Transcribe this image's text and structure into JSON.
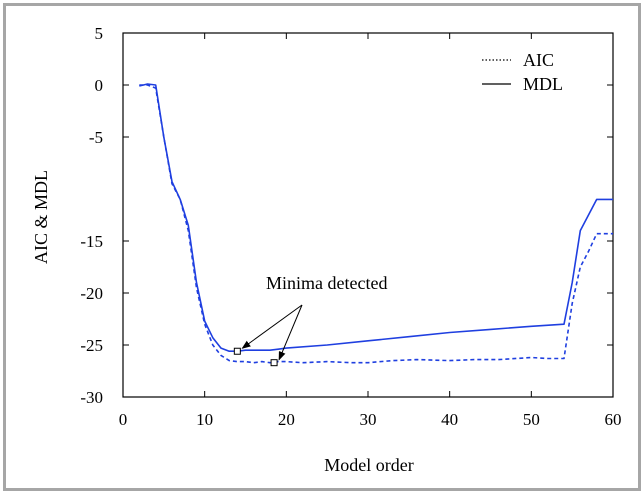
{
  "chart_data": {
    "type": "line",
    "xlabel": "Model order",
    "ylabel": "AIC & MDL",
    "xlim": [
      0,
      60
    ],
    "ylim": [
      -30,
      5
    ],
    "xticks": [
      0,
      10,
      20,
      30,
      40,
      50,
      60
    ],
    "yticks": [
      5,
      0,
      -5,
      -15,
      -20,
      -25,
      -30
    ],
    "grid": false,
    "legend_position": "top-right",
    "series": [
      {
        "name": "AIC",
        "style": "dotted",
        "color": "#1f3fe0",
        "x": [
          2,
          3,
          4,
          5,
          6,
          7,
          8,
          9,
          10,
          11,
          12,
          13,
          14,
          15,
          16,
          17,
          18,
          19,
          20,
          22,
          25,
          28,
          30,
          33,
          36,
          40,
          43,
          46,
          50,
          52,
          54,
          55,
          56,
          57,
          58,
          60
        ],
        "y": [
          0,
          0,
          -0.3,
          -5,
          -9.5,
          -11,
          -14,
          -19.5,
          -23,
          -25,
          -26,
          -26.5,
          -26.6,
          -26.6,
          -26.7,
          -26.6,
          -26.7,
          -26.6,
          -26.6,
          -26.7,
          -26.6,
          -26.7,
          -26.7,
          -26.5,
          -26.4,
          -26.5,
          -26.4,
          -26.4,
          -26.2,
          -26.3,
          -26.3,
          -21,
          -17.5,
          -16,
          -14.3,
          -14.3
        ]
      },
      {
        "name": "MDL",
        "style": "solid",
        "color": "#1f3fe0",
        "x": [
          2,
          3,
          4,
          5,
          6,
          7,
          8,
          9,
          10,
          11,
          12,
          13,
          14,
          15,
          16,
          17,
          18,
          19,
          20,
          25,
          30,
          35,
          40,
          45,
          50,
          54,
          55,
          56,
          57,
          58,
          60
        ],
        "y": [
          -0.1,
          0.1,
          0,
          -5,
          -9.3,
          -11,
          -13.5,
          -19,
          -22.7,
          -24.3,
          -25.3,
          -25.6,
          -25.6,
          -25.5,
          -25.5,
          -25.5,
          -25.5,
          -25.4,
          -25.3,
          -25,
          -24.6,
          -24.2,
          -23.8,
          -23.5,
          -23.2,
          -23,
          -19,
          -14,
          -12.5,
          -11,
          -11
        ]
      }
    ],
    "annotations": [
      {
        "text": "Minima detected",
        "markers": [
          {
            "x": 14,
            "y": -25.6
          },
          {
            "x": 18.5,
            "y": -26.7
          }
        ]
      }
    ]
  }
}
